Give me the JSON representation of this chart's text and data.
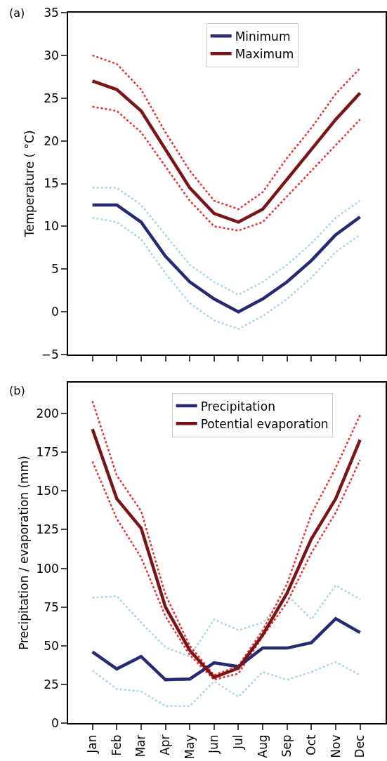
{
  "chart_data": [
    {
      "type": "line",
      "ylabel": "Temperature ( °C)",
      "annotations": [
        "(a)"
      ],
      "categories": [
        null,
        null,
        null,
        null,
        null,
        null,
        null,
        null,
        null,
        null,
        null,
        null
      ],
      "ylim": [
        -5,
        35
      ],
      "yticks": [
        -5,
        0,
        5,
        10,
        15,
        20,
        25,
        30,
        35
      ],
      "tick_labels": "y",
      "grid": false,
      "legend": "top",
      "marker": "none",
      "series": [
        {
          "name": "Minimum",
          "color": "#262a73",
          "line_style": "solid",
          "values": [
            12.5,
            12.5,
            10.5,
            6.5,
            3.5,
            1.5,
            0,
            1.5,
            3.5,
            6,
            9,
            11.1
          ]
        },
        {
          "name": "Maximum",
          "color": "#7b1416",
          "line_style": "solid",
          "values": [
            27,
            26,
            23.5,
            19,
            14.5,
            11.5,
            10.5,
            12,
            15.5,
            19,
            22.5,
            25.6
          ]
        },
        {
          "color": "#a8d8e6",
          "line_style": "dotted",
          "values": [
            14.5,
            14.5,
            12.5,
            9,
            5.5,
            3.5,
            2,
            3.5,
            5.5,
            8,
            11,
            13
          ]
        },
        {
          "color": "#a8d8e6",
          "line_style": "dotted",
          "values": [
            11,
            10.5,
            8.5,
            4.5,
            1,
            -1,
            -2,
            -0.5,
            1.5,
            4,
            7,
            9
          ]
        },
        {
          "color": "#f0282a",
          "line_style": "dotted",
          "values": [
            30,
            29,
            26,
            21,
            16.5,
            13,
            12,
            14,
            18,
            21.5,
            25.5,
            28.5
          ]
        },
        {
          "color": "#f0282a",
          "line_style": "dotted",
          "values": [
            24,
            23.5,
            21,
            17,
            13,
            10,
            9.5,
            10.5,
            13.5,
            16.5,
            19.5,
            22.5
          ]
        }
      ]
    },
    {
      "type": "line",
      "ylabel": "Precipitation / evaporation (mm)",
      "annotations": [
        "(b)"
      ],
      "categories": [
        "Jan",
        "Feb",
        "Mar",
        "Apr",
        "May",
        "Jun",
        "Jul",
        "Aug",
        "Sep",
        "Oct",
        "Nov",
        "Dec"
      ],
      "ylim": [
        0,
        220
      ],
      "yticks": [
        0,
        25,
        50,
        75,
        100,
        125,
        150,
        175,
        200
      ],
      "grid": false,
      "legend": "top",
      "marker": "none",
      "series": [
        {
          "name": "Precipitation",
          "color": "#262a73",
          "line_style": "solid",
          "values": [
            46,
            35,
            43,
            28,
            28.5,
            39,
            36.5,
            48.5,
            48.5,
            52,
            67.5,
            58.5
          ]
        },
        {
          "name": "Potential evaporation",
          "color": "#7b1416",
          "line_style": "solid",
          "values": [
            190,
            145,
            126,
            75,
            47,
            29.5,
            35.5,
            57,
            84,
            119,
            145,
            183
          ]
        },
        {
          "color": "#a8d8e6",
          "line_style": "dotted",
          "values": [
            81,
            82,
            65,
            49,
            43,
            67,
            60,
            65,
            83,
            67,
            89,
            80
          ]
        },
        {
          "color": "#a8d8e6",
          "line_style": "dotted",
          "values": [
            34,
            22,
            20.5,
            11,
            11,
            27,
            17,
            33,
            28,
            33,
            39.5,
            31
          ]
        },
        {
          "color": "#f0282a",
          "line_style": "dotted",
          "values": [
            208,
            160,
            137,
            83,
            50,
            31,
            37,
            60,
            90,
            135,
            165,
            199
          ]
        },
        {
          "color": "#f0282a",
          "line_style": "dotted",
          "values": [
            169,
            132,
            107,
            69,
            44,
            28,
            32,
            56,
            78,
            110,
            136,
            170
          ]
        }
      ]
    }
  ]
}
